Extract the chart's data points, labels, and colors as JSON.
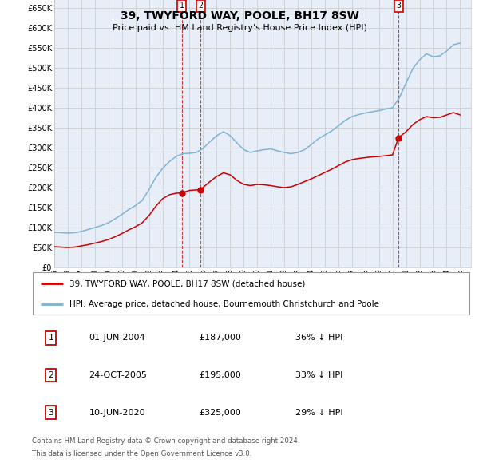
{
  "title": "39, TWYFORD WAY, POOLE, BH17 8SW",
  "subtitle": "Price paid vs. HM Land Registry's House Price Index (HPI)",
  "ylabel_ticks": [
    0,
    50000,
    100000,
    150000,
    200000,
    250000,
    300000,
    350000,
    400000,
    450000,
    500000,
    550000,
    600000,
    650000
  ],
  "ylim": [
    0,
    680000
  ],
  "xlim_start": 1995.0,
  "xlim_end": 2025.8,
  "sale_dates": [
    2004.42,
    2005.81,
    2020.44
  ],
  "sale_prices": [
    187000,
    195000,
    325000
  ],
  "sale_labels": [
    "1",
    "2",
    "3"
  ],
  "legend_line1": "39, TWYFORD WAY, POOLE, BH17 8SW (detached house)",
  "legend_line2": "HPI: Average price, detached house, Bournemouth Christchurch and Poole",
  "table_data": [
    [
      "1",
      "01-JUN-2004",
      "£187,000",
      "36% ↓ HPI"
    ],
    [
      "2",
      "24-OCT-2005",
      "£195,000",
      "33% ↓ HPI"
    ],
    [
      "3",
      "10-JUN-2020",
      "£325,000",
      "29% ↓ HPI"
    ]
  ],
  "footnote1": "Contains HM Land Registry data © Crown copyright and database right 2024.",
  "footnote2": "This data is licensed under the Open Government Licence v3.0.",
  "red_color": "#cc0000",
  "blue_color": "#7fb3d3",
  "background_color": "#e8eef8",
  "grid_color": "#c8c8c8",
  "years_hpi": [
    1995.0,
    1995.5,
    1996.0,
    1996.5,
    1997.0,
    1997.5,
    1998.0,
    1998.5,
    1999.0,
    1999.5,
    2000.0,
    2000.5,
    2001.0,
    2001.5,
    2002.0,
    2002.5,
    2003.0,
    2003.5,
    2004.0,
    2004.5,
    2005.0,
    2005.5,
    2006.0,
    2006.5,
    2007.0,
    2007.5,
    2008.0,
    2008.5,
    2009.0,
    2009.5,
    2010.0,
    2010.5,
    2011.0,
    2011.5,
    2012.0,
    2012.5,
    2013.0,
    2013.5,
    2014.0,
    2014.5,
    2015.0,
    2015.5,
    2016.0,
    2016.5,
    2017.0,
    2017.5,
    2018.0,
    2018.5,
    2019.0,
    2019.5,
    2020.0,
    2020.5,
    2021.0,
    2021.5,
    2022.0,
    2022.5,
    2023.0,
    2023.5,
    2024.0,
    2024.5,
    2025.0
  ],
  "hpi_values": [
    88000,
    87000,
    86000,
    87000,
    90000,
    95000,
    100000,
    105000,
    112000,
    122000,
    133000,
    145000,
    155000,
    168000,
    195000,
    225000,
    248000,
    265000,
    278000,
    285000,
    286000,
    288000,
    298000,
    315000,
    330000,
    340000,
    330000,
    312000,
    295000,
    288000,
    292000,
    295000,
    297000,
    292000,
    288000,
    285000,
    288000,
    295000,
    308000,
    322000,
    332000,
    342000,
    355000,
    368000,
    378000,
    383000,
    387000,
    390000,
    393000,
    397000,
    400000,
    425000,
    462000,
    498000,
    520000,
    535000,
    528000,
    530000,
    542000,
    558000,
    562000
  ],
  "years_red": [
    1995.0,
    1995.5,
    1996.0,
    1996.5,
    1997.0,
    1997.5,
    1998.0,
    1998.5,
    1999.0,
    1999.5,
    2000.0,
    2000.5,
    2001.0,
    2001.5,
    2002.0,
    2002.5,
    2003.0,
    2003.5,
    2004.0,
    2004.42,
    2005.0,
    2005.81,
    2006.5,
    2007.0,
    2007.5,
    2008.0,
    2008.5,
    2009.0,
    2009.5,
    2010.0,
    2010.5,
    2011.0,
    2011.5,
    2012.0,
    2012.5,
    2013.0,
    2013.5,
    2014.0,
    2014.5,
    2015.0,
    2015.5,
    2016.0,
    2016.5,
    2017.0,
    2017.5,
    2018.0,
    2018.5,
    2019.0,
    2019.5,
    2020.0,
    2020.44,
    2021.0,
    2021.5,
    2022.0,
    2022.5,
    2023.0,
    2023.5,
    2024.0,
    2024.5,
    2025.0
  ],
  "red_values": [
    52000,
    51000,
    50000,
    51000,
    54000,
    57000,
    61000,
    65000,
    70000,
    77000,
    85000,
    94000,
    102000,
    112000,
    130000,
    153000,
    172000,
    182000,
    186000,
    187000,
    193000,
    195000,
    215000,
    228000,
    237000,
    232000,
    218000,
    208000,
    205000,
    208000,
    207000,
    205000,
    202000,
    200000,
    202000,
    208000,
    215000,
    222000,
    230000,
    238000,
    246000,
    255000,
    264000,
    270000,
    273000,
    275000,
    277000,
    278000,
    280000,
    282000,
    325000,
    340000,
    358000,
    370000,
    378000,
    375000,
    376000,
    382000,
    388000,
    382000
  ]
}
